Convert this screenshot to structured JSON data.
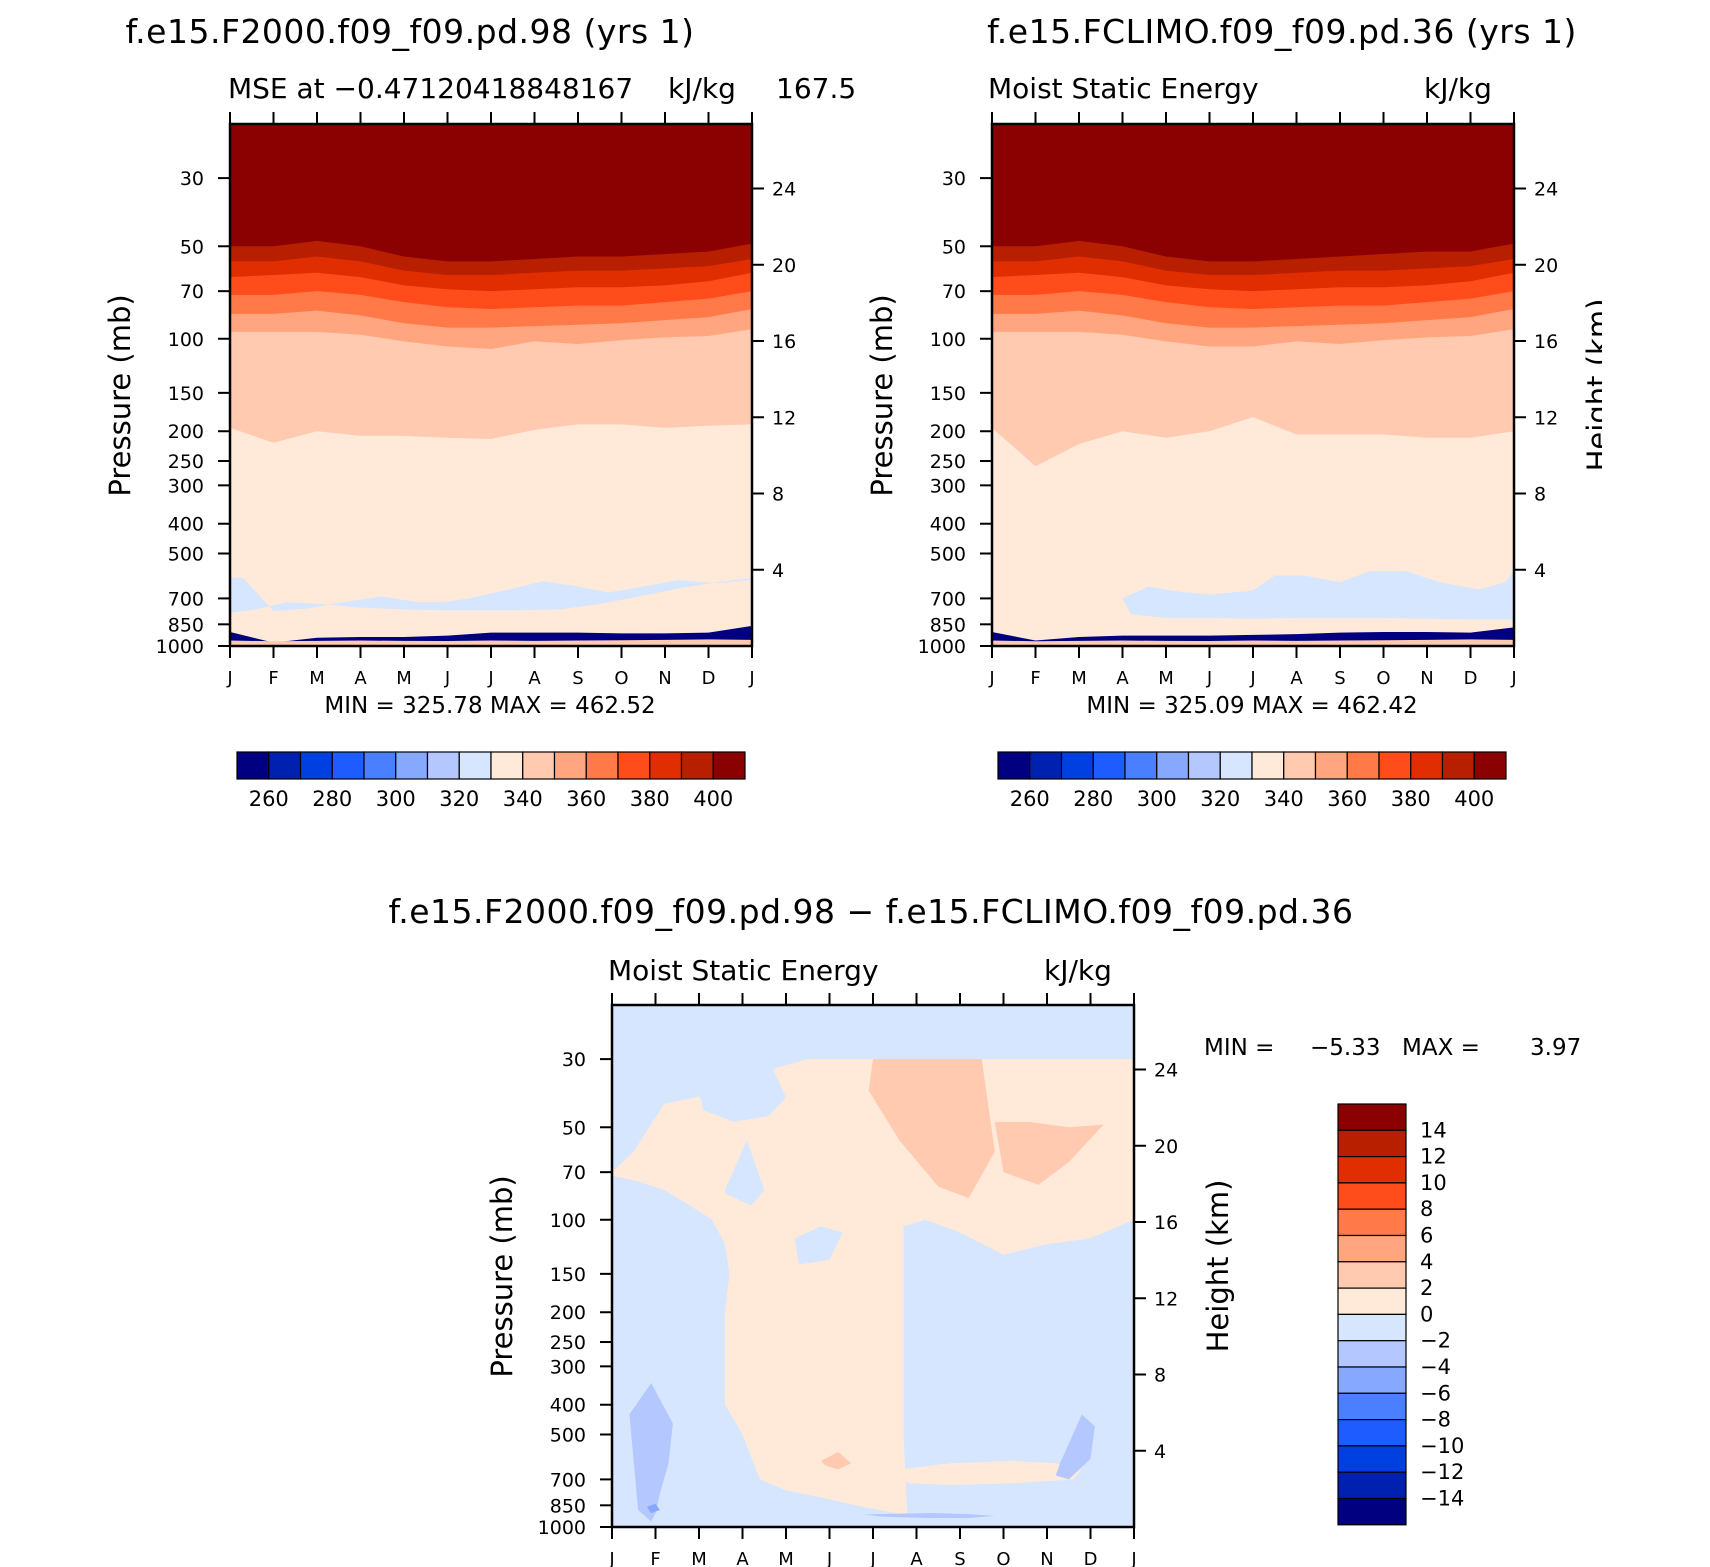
{
  "colors": {
    "mse_levels": [
      "#000080",
      "#0020b0",
      "#0040e0",
      "#1e5cff",
      "#4a80ff",
      "#86a8ff",
      "#b4c8ff",
      "#d6e6ff",
      "#ffeada",
      "#ffcab0",
      "#ffa680",
      "#ff7a48",
      "#ff4c1a",
      "#e02e00",
      "#b81e00",
      "#8b0000"
    ],
    "diff_levels": [
      "#000080",
      "#0020b0",
      "#0040e0",
      "#1e5cff",
      "#4a80ff",
      "#86a8ff",
      "#b4c8ff",
      "#d6e6ff",
      "#ffeada",
      "#ffcab0",
      "#ffa680",
      "#ff7a48",
      "#ff4c1a",
      "#e02e00",
      "#b81e00",
      "#8b0000"
    ]
  },
  "axes": {
    "months": [
      "J",
      "F",
      "M",
      "A",
      "M",
      "J",
      "J",
      "A",
      "S",
      "O",
      "N",
      "D",
      "J"
    ],
    "pressure_ticks": [
      "30",
      "50",
      "70",
      "100",
      "150",
      "200",
      "250",
      "300",
      "400",
      "500",
      "700",
      "850",
      "1000"
    ],
    "height_ticks": [
      "24",
      "20",
      "16",
      "12",
      "8",
      "4"
    ],
    "pressure_label": "Pressure (mb)",
    "height_label": "Height (km)"
  },
  "chart_data": [
    {
      "type": "heatmap",
      "title": "f.e15.F2000.f09_f09.pd.98 (yrs 1)",
      "subtitle_left": "MSE at −0.47120418848167",
      "subtitle_right": "kJ/kg",
      "subtitle_extra": "167.5",
      "stats": "MIN = 325.78 MAX = 462.52",
      "colorbar": {
        "orientation": "horizontal",
        "labels": [
          "260",
          "280",
          "300",
          "320",
          "340",
          "360",
          "380",
          "400"
        ]
      },
      "contour_levels": [
        260,
        270,
        280,
        290,
        300,
        310,
        320,
        330,
        340,
        350,
        360,
        370,
        380,
        390,
        400
      ],
      "boundaries": [
        {
          "upper_band": 15,
          "p": [
            50,
            50,
            48,
            50,
            54,
            56,
            56,
            55,
            54,
            54,
            53,
            52,
            49
          ]
        },
        {
          "upper_band": 14,
          "p": [
            56,
            56,
            54,
            56,
            60,
            62,
            62,
            61,
            60,
            60,
            59,
            58,
            55
          ]
        },
        {
          "upper_band": 13,
          "p": [
            63,
            62,
            61,
            63,
            67,
            69,
            70,
            69,
            68,
            68,
            67,
            65,
            61
          ]
        },
        {
          "upper_band": 12,
          "p": [
            72,
            72,
            70,
            72,
            76,
            79,
            80,
            79,
            78,
            78,
            76,
            74,
            70
          ]
        },
        {
          "upper_band": 11,
          "p": [
            83,
            83,
            81,
            84,
            89,
            92,
            92,
            91,
            90,
            89,
            87,
            85,
            80
          ]
        },
        {
          "upper_band": 10,
          "p": [
            95,
            95,
            95,
            97,
            102,
            106,
            108,
            102,
            104,
            101,
            99,
            98,
            93
          ]
        },
        {
          "upper_band": 9,
          "p": [
            195,
            218,
            200,
            207,
            207,
            210,
            212,
            198,
            190,
            190,
            195,
            192,
            190
          ]
        },
        {
          "upper_band": 8,
          "p": [
            900,
            975,
            940,
            935,
            935,
            925,
            905,
            905,
            905,
            910,
            910,
            905,
            860
          ]
        },
        {
          "upper_band": 0,
          "p": [
            1000,
            1000,
            1000,
            1000,
            1000,
            1000,
            1000,
            1000,
            1000,
            1000,
            1000,
            1000,
            1000
          ]
        }
      ],
      "patches": [
        {
          "level": 7,
          "x": [
            0,
            0.3,
            1.0,
            1.8,
            2.6,
            3.5,
            4.3,
            4.9,
            5.5,
            6.3,
            7.2,
            8.0,
            8.7,
            9.5,
            10.3,
            11.2,
            12,
            12,
            11.2,
            10.3,
            9.4,
            8.5,
            7.6,
            6.6,
            5.7,
            4.8,
            3.9,
            3.0,
            2.1,
            1.3,
            0.6,
            0
          ],
          "p": [
            600,
            600,
            770,
            755,
            720,
            690,
            720,
            720,
            700,
            660,
            615,
            640,
            670,
            640,
            610,
            625,
            610,
            600,
            620,
            650,
            690,
            730,
            760,
            765,
            765,
            765,
            760,
            750,
            730,
            720,
            760,
            780
          ]
        }
      ]
    },
    {
      "type": "heatmap",
      "title": "f.e15.FCLIMO.f09_f09.pd.36 (yrs 1)",
      "subtitle_left": "Moist Static Energy",
      "subtitle_right": "kJ/kg",
      "stats": "MIN = 325.09 MAX = 462.42",
      "colorbar": {
        "orientation": "horizontal",
        "labels": [
          "260",
          "280",
          "300",
          "320",
          "340",
          "360",
          "380",
          "400"
        ]
      },
      "contour_levels": [
        260,
        270,
        280,
        290,
        300,
        310,
        320,
        330,
        340,
        350,
        360,
        370,
        380,
        390,
        400
      ],
      "boundaries": [
        {
          "upper_band": 15,
          "p": [
            50,
            50,
            48,
            50,
            54,
            56,
            56,
            55,
            54,
            53,
            52,
            52,
            49
          ]
        },
        {
          "upper_band": 14,
          "p": [
            56,
            56,
            54,
            56,
            60,
            62,
            62,
            61,
            60,
            60,
            59,
            58,
            55
          ]
        },
        {
          "upper_band": 13,
          "p": [
            63,
            62,
            61,
            63,
            67,
            69,
            70,
            69,
            68,
            68,
            67,
            65,
            61
          ]
        },
        {
          "upper_band": 12,
          "p": [
            72,
            72,
            70,
            72,
            76,
            79,
            80,
            79,
            78,
            78,
            76,
            74,
            70
          ]
        },
        {
          "upper_band": 11,
          "p": [
            83,
            83,
            81,
            84,
            89,
            92,
            92,
            91,
            90,
            89,
            87,
            85,
            80
          ]
        },
        {
          "upper_band": 10,
          "p": [
            95,
            95,
            95,
            97,
            102,
            106,
            106,
            102,
            104,
            101,
            99,
            98,
            93
          ]
        },
        {
          "upper_band": 9,
          "p": [
            195,
            260,
            220,
            200,
            210,
            200,
            180,
            205,
            205,
            205,
            210,
            210,
            200
          ]
        },
        {
          "upper_band": 8,
          "p": [
            900,
            960,
            935,
            925,
            925,
            925,
            920,
            915,
            905,
            900,
            900,
            905,
            870
          ]
        },
        {
          "upper_band": 0,
          "p": [
            1000,
            1000,
            1000,
            1000,
            1000,
            1000,
            1000,
            1000,
            1000,
            1000,
            1000,
            1000,
            1000
          ]
        }
      ],
      "patches": [
        {
          "level": 7,
          "x": [
            3.0,
            3.6,
            4.3,
            5.0,
            6.0,
            6.5,
            7.2,
            8.0,
            8.7,
            9.5,
            10.3,
            11.2,
            11.8,
            12,
            12,
            11.0,
            10.0,
            9.0,
            8.0,
            7.0,
            6.0,
            5.0,
            4.0,
            3.2
          ],
          "p": [
            700,
            640,
            665,
            680,
            660,
            590,
            590,
            620,
            570,
            570,
            620,
            655,
            620,
            570,
            820,
            820,
            815,
            810,
            810,
            810,
            815,
            810,
            810,
            790
          ]
        }
      ]
    },
    {
      "type": "heatmap",
      "title": "f.e15.F2000.f09_f09.pd.98 − f.e15.FCLIMO.f09_f09.pd.36",
      "subtitle_left": "Moist Static Energy",
      "subtitle_right": "kJ/kg",
      "stats_min_label": "MIN =",
      "stats_min": "−5.33",
      "stats_max_label": "MAX =",
      "stats_max": "3.97",
      "colorbar": {
        "orientation": "vertical",
        "labels": [
          "14",
          "12",
          "10",
          "8",
          "6",
          "4",
          "2",
          "0",
          "−2",
          "−4",
          "−6",
          "−8",
          "−10",
          "−12",
          "−14"
        ]
      },
      "contour_levels": [
        -14,
        -12,
        -10,
        -8,
        -6,
        -4,
        -2,
        0,
        2,
        4,
        6,
        8,
        10,
        12,
        14
      ],
      "background_level": 7,
      "patches": [
        {
          "level": 8,
          "x": [
            0,
            0.5,
            1.2,
            1.9,
            2.6,
            3.2,
            3.8,
            4.5,
            5.5,
            6.5,
            7.3,
            8.2,
            8.9,
            9.6,
            10.5,
            11.3,
            12,
            12,
            11.3,
            10.5,
            9.7,
            9.0,
            8.2,
            7.3,
            6.5,
            5.6,
            4.8,
            4.0,
            3.4,
            3.0,
            2.6,
            2.6,
            2.6,
            2.7,
            2.6,
            2.3,
            1.8,
            1.2,
            0.6,
            0
          ],
          "p": [
            70,
            60,
            42,
            40,
            38,
            35,
            32,
            30,
            30,
            30,
            30,
            30,
            30,
            30,
            30,
            30,
            30,
            1000,
            980,
            970,
            965,
            940,
            900,
            950,
            900,
            850,
            800,
            760,
            700,
            500,
            400,
            300,
            200,
            150,
            120,
            100,
            90,
            80,
            75,
            72
          ]
        }
      ],
      "patches_extra": [
        {
          "level": 7,
          "x": [
            1.8,
            2.1,
            2.8,
            3.6,
            4.0,
            3.6,
            2.8,
            2.1
          ],
          "p": [
            30,
            44,
            48,
            46,
            40,
            30,
            30,
            30
          ]
        },
        {
          "level": 7,
          "x": [
            2.6,
            3.1,
            3.5,
            3.2,
            2.6
          ],
          "p": [
            80,
            55,
            80,
            90,
            82
          ]
        },
        {
          "level": 7,
          "x": [
            4.2,
            4.8,
            5.3,
            5.0,
            4.3
          ],
          "p": [
            115,
            105,
            110,
            135,
            140
          ]
        },
        {
          "level": 7,
          "x": [
            6.7,
            7.2,
            8.0,
            9.0,
            10.0,
            11.0,
            12,
            12,
            6.8,
            6.7
          ],
          "p": [
            105,
            100,
            110,
            130,
            120,
            115,
            100,
            1000,
            1000,
            500
          ]
        },
        {
          "level": 9,
          "x": [
            6.0,
            6.8,
            7.7,
            8.5,
            8.8,
            8.2,
            7.5,
            6.6,
            5.9
          ],
          "p": [
            30,
            30,
            30,
            30,
            60,
            85,
            78,
            55,
            38
          ]
        },
        {
          "level": 9,
          "x": [
            8.8,
            9.6,
            10.5,
            11.3,
            10.5,
            9.8,
            9.0
          ],
          "p": [
            48,
            48,
            50,
            49,
            65,
            77,
            70
          ]
        },
        {
          "level": 9,
          "x": [
            4.8,
            5.2,
            5.5,
            5.2,
            4.9
          ],
          "p": [
            610,
            570,
            620,
            650,
            630
          ]
        },
        {
          "level": 8,
          "x": [
            6.6,
            7.8,
            9.2,
            10.2,
            10.8,
            10.6,
            9.3,
            7.8,
            6.8
          ],
          "p": [
            650,
            620,
            610,
            620,
            650,
            700,
            720,
            730,
            720
          ]
        },
        {
          "level": 6,
          "x": [
            0.4,
            0.9,
            1.4,
            1.3,
            1.1,
            1.0,
            0.9,
            0.6
          ],
          "p": [
            430,
            340,
            460,
            620,
            780,
            900,
            960,
            880
          ]
        },
        {
          "level": 5,
          "x": [
            0.8,
            1.0,
            1.1,
            0.9
          ],
          "p": [
            860,
            840,
            880,
            900
          ]
        },
        {
          "level": 6,
          "x": [
            10.3,
            10.8,
            11.1,
            11.0,
            10.5,
            10.2
          ],
          "p": [
            620,
            430,
            470,
            600,
            700,
            680
          ]
        },
        {
          "level": 6,
          "x": [
            5.8,
            6.6,
            7.4,
            8.3,
            8.8,
            8.2,
            7.2,
            6.2
          ],
          "p": [
            910,
            905,
            900,
            910,
            920,
            935,
            935,
            925
          ]
        }
      ]
    }
  ]
}
